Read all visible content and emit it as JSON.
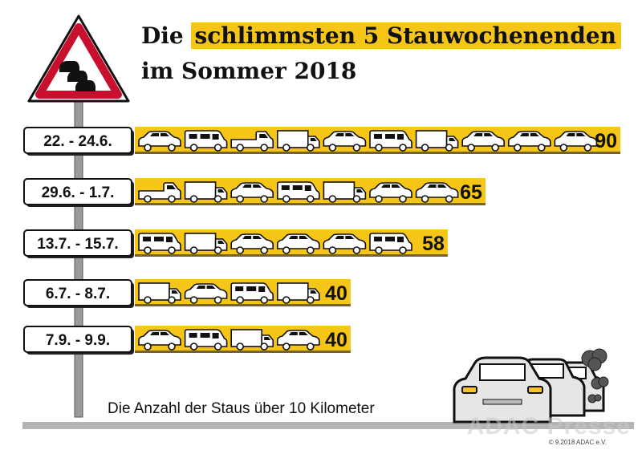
{
  "title": {
    "part1": "Die ",
    "highlight": "schlimmsten 5 Stauwochenenden",
    "line2": "im Sommer 2018"
  },
  "caption": "Die Anzahl der Staus über 10 Kilometer",
  "copyright": "© 9.2018 ADAC e.V.",
  "watermark": "ADAC Presse",
  "colors": {
    "bar": "#f5c518",
    "pole": "#9a9a9a",
    "sign_border": "#c8102e",
    "text": "#111111"
  },
  "chart_data": {
    "type": "bar",
    "orientation": "horizontal",
    "categories": [
      "22. - 24.6.",
      "29.6. - 1.7.",
      "13.7. - 15.7.",
      "6.7. - 8.7.",
      "7.9. - 9.9."
    ],
    "values": [
      90,
      65,
      58,
      40,
      40
    ],
    "vehicle_icons": [
      [
        "car",
        "camper",
        "pickup",
        "truck",
        "car",
        "camper",
        "truck",
        "car",
        "car",
        "car"
      ],
      [
        "pickup",
        "truck",
        "car",
        "camper",
        "truck",
        "car",
        "car"
      ],
      [
        "camper",
        "truck",
        "car",
        "car",
        "car",
        "camper"
      ],
      [
        "truck",
        "car",
        "camper",
        "truck"
      ],
      [
        "car",
        "camper",
        "truck",
        "car"
      ]
    ],
    "title": "Die schlimmsten 5 Stauwochenenden im Sommer 2018",
    "xlabel": "Die Anzahl der Staus über 10 Kilometer",
    "ylabel": "",
    "xlim": [
      0,
      90
    ],
    "grid": false,
    "legend": "none"
  }
}
